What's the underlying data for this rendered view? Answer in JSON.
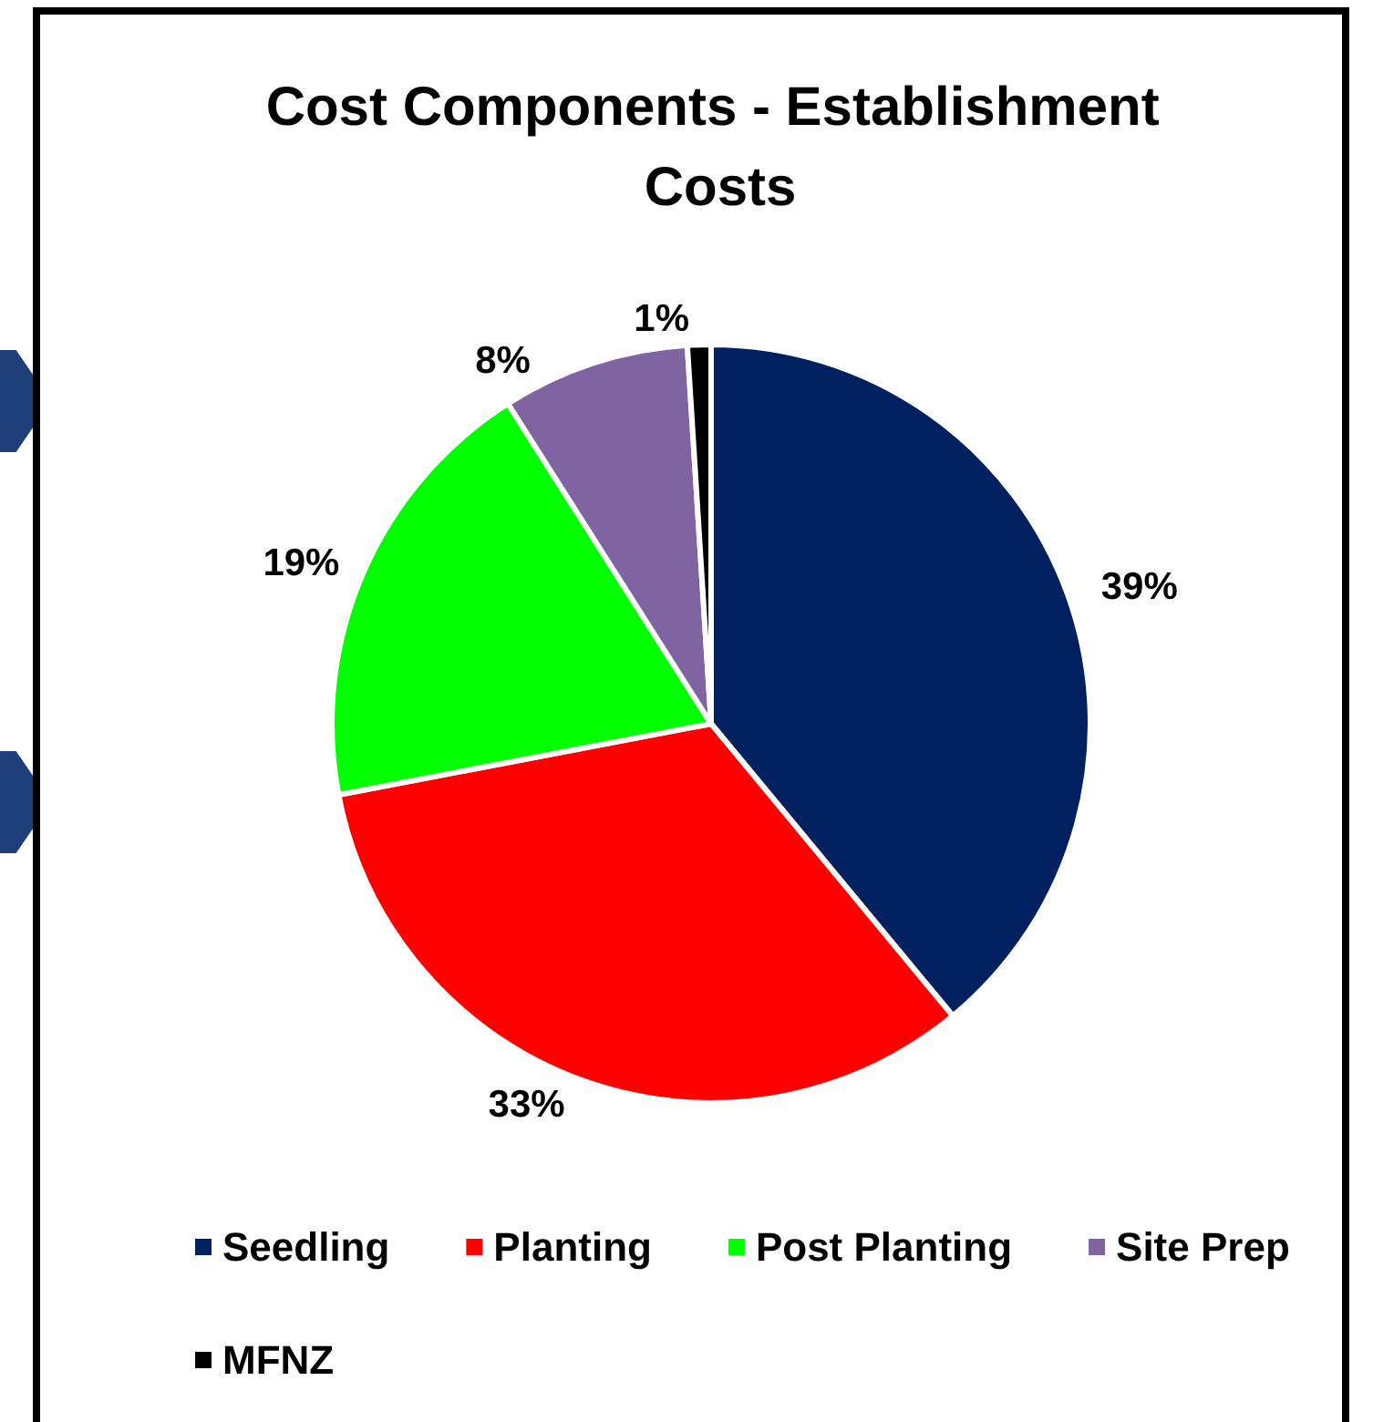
{
  "chart_data": {
    "type": "pie",
    "title": "Cost Components - Establishment Costs",
    "categories": [
      "Seedling",
      "Planting",
      "Post Planting",
      "Site Prep",
      "MFNZ"
    ],
    "values": [
      39,
      33,
      19,
      8,
      1
    ],
    "colors": [
      "#002060",
      "#ff0000",
      "#00ff00",
      "#8064a2",
      "#000000"
    ],
    "value_labels": [
      "39%",
      "33%",
      "19%",
      "8%",
      "1%"
    ],
    "legend": "bottom"
  }
}
